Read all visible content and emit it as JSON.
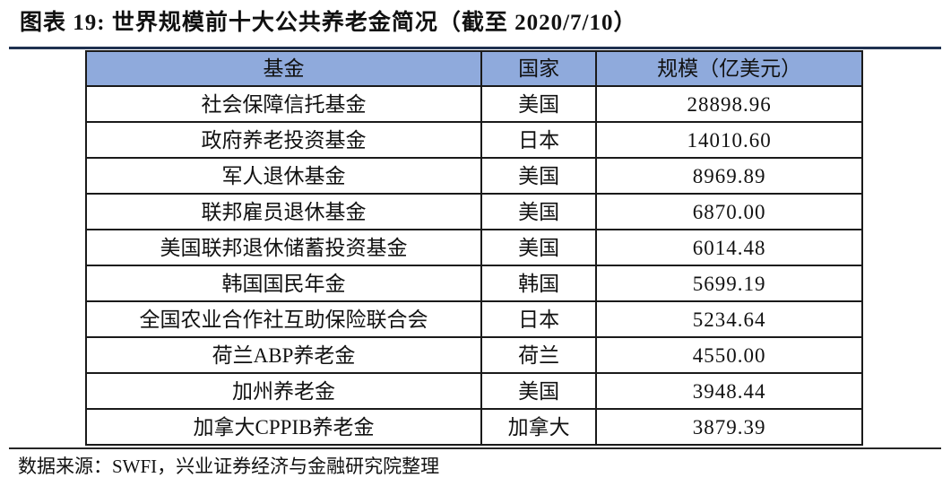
{
  "figure": {
    "title": "图表 19: 世界规模前十大公共养老金简况（截至 2020/7/10）",
    "source_note": "数据来源：SWFI，兴业证券经济与金融研究院整理"
  },
  "colors": {
    "header_bg": "#8FAADC",
    "title_rule": "#1F3150",
    "bottom_rule": "#262626",
    "table_border": "#1A1A1A",
    "text": "#111111"
  },
  "table": {
    "columns": [
      {
        "key": "fund",
        "label": "基金"
      },
      {
        "key": "country",
        "label": "国家"
      },
      {
        "key": "scale",
        "label": "规模（亿美元）"
      }
    ],
    "rows": [
      {
        "fund": "社会保障信托基金",
        "country": "美国",
        "scale": "28898.96"
      },
      {
        "fund": "政府养老投资基金",
        "country": "日本",
        "scale": "14010.60"
      },
      {
        "fund": "军人退休基金",
        "country": "美国",
        "scale": "8969.89"
      },
      {
        "fund": "联邦雇员退休基金",
        "country": "美国",
        "scale": "6870.00"
      },
      {
        "fund": "美国联邦退休储蓄投资基金",
        "country": "美国",
        "scale": "6014.48"
      },
      {
        "fund": "韩国国民年金",
        "country": "韩国",
        "scale": "5699.19"
      },
      {
        "fund": "全国农业合作社互助保险联合会",
        "country": "日本",
        "scale": "5234.64"
      },
      {
        "fund": "荷兰ABP养老金",
        "country": "荷兰",
        "scale": "4550.00"
      },
      {
        "fund": "加州养老金",
        "country": "美国",
        "scale": "3948.44"
      },
      {
        "fund": "加拿大CPPIB养老金",
        "country": "加拿大",
        "scale": "3879.39"
      }
    ]
  }
}
